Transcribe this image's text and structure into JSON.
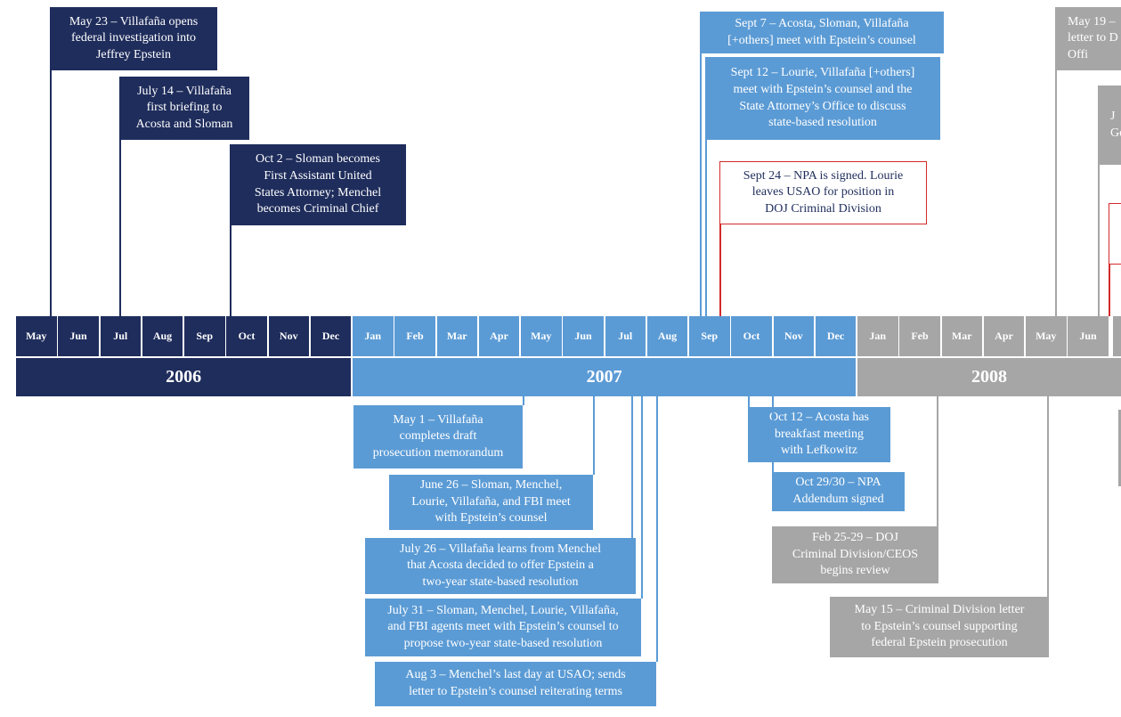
{
  "timeline": {
    "years": [
      {
        "label": "2006",
        "months": [
          "May",
          "Jun",
          "Jul",
          "Aug",
          "Sep",
          "Oct",
          "Nov",
          "Dec"
        ]
      },
      {
        "label": "2007",
        "months": [
          "Jan",
          "Feb",
          "Mar",
          "Apr",
          "May",
          "Jun",
          "Jul",
          "Aug",
          "Sep",
          "Oct",
          "Nov",
          "Dec"
        ]
      },
      {
        "label": "2008",
        "months": [
          "Jan",
          "Feb",
          "Mar",
          "Apr",
          "May",
          "Jun"
        ]
      }
    ],
    "events": [
      {
        "lines": [
          "May 23 – Villafaña opens",
          "federal investigation into",
          "Jeffrey Epstein"
        ]
      },
      {
        "lines": [
          "July 14 – Villafaña",
          "first briefing to",
          "Acosta and Sloman"
        ]
      },
      {
        "lines": [
          "Oct 2 – Sloman becomes",
          "First Assistant United",
          "States Attorney; Menchel",
          "becomes Criminal Chief"
        ]
      },
      {
        "lines": [
          "Sept 7 – Acosta, Sloman, Villafaña",
          "[+others] meet with Epstein’s counsel"
        ]
      },
      {
        "lines": [
          "Sept 12 – Lourie, Villafaña [+others]",
          "meet with Epstein’s counsel and the",
          "State Attorney’s Office to discuss",
          "state-based resolution"
        ]
      },
      {
        "lines": [
          "Sept 24 – NPA is signed.  Lourie",
          "leaves USAO for position in",
          "DOJ Criminal Division"
        ]
      },
      {
        "lines": [
          "May 19 –",
          "letter to D",
          "Offi"
        ]
      },
      {
        "lines": [
          "J",
          "Ge"
        ]
      },
      {
        "lines": [
          "May 1 – Villafaña",
          "completes draft",
          "prosecution memorandum"
        ]
      },
      {
        "lines": [
          "June 26 – Sloman, Menchel,",
          "Lourie, Villafaña, and FBI meet",
          "with Epstein’s counsel"
        ]
      },
      {
        "lines": [
          "July 26 – Villafaña learns from Menchel",
          "that Acosta decided to offer Epstein a",
          "two-year state-based resolution"
        ]
      },
      {
        "lines": [
          "July 31 – Sloman, Menchel, Lourie, Villafaña,",
          "and FBI agents meet with Epstein’s counsel to",
          "propose two-year state-based resolution"
        ]
      },
      {
        "lines": [
          "Aug 3 – Menchel’s last day at USAO; sends",
          "letter to Epstein’s counsel reiterating terms"
        ]
      },
      {
        "lines": [
          "Oct 12 – Acosta has",
          "breakfast meeting",
          "with Lefkowitz"
        ]
      },
      {
        "lines": [
          "Oct 29/30 – NPA",
          "Addendum signed"
        ]
      },
      {
        "lines": [
          "Feb 25-29 – DOJ",
          "Criminal Division/CEOS",
          "begins review"
        ]
      },
      {
        "lines": [
          "May 15 – Criminal Division letter",
          "to Epstein’s counsel supporting",
          "federal Epstein prosecution"
        ]
      }
    ]
  }
}
